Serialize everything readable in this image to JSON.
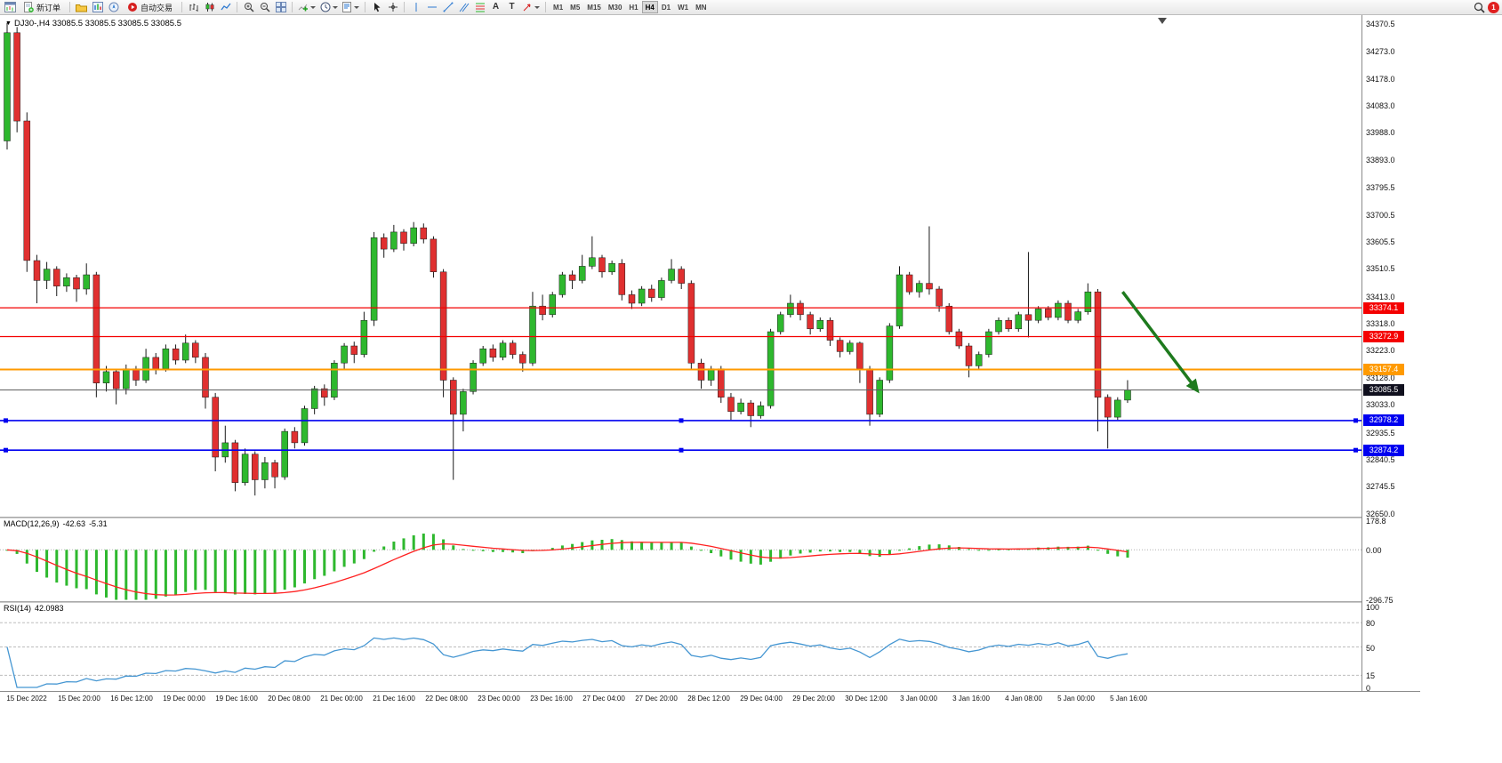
{
  "toolbar": {
    "new_order": "新订单",
    "autotrading": "自动交易",
    "text_tool": "A",
    "label_tool": "T",
    "timeframes": [
      "M1",
      "M5",
      "M15",
      "M30",
      "H1",
      "H4",
      "D1",
      "W1",
      "MN"
    ],
    "active_timeframe": "H4",
    "notification_count": "1"
  },
  "chart": {
    "info_label": "DJ30-,H4 33085.5 33085.5 33085.5 33085.5"
  },
  "chart_data": {
    "type": "candlestick",
    "symbol": "DJ30-",
    "period": "H4",
    "ylim": [
      32650.0,
      34370.5
    ],
    "price_ticks": [
      "34370.5",
      "34273.0",
      "34178.0",
      "34083.0",
      "33988.0",
      "33893.0",
      "33795.5",
      "33700.5",
      "33605.5",
      "33510.5",
      "33413.0",
      "33318.0",
      "33223.0",
      "33128.0",
      "33033.0",
      "32935.5",
      "32840.5",
      "32745.5",
      "32650.0"
    ],
    "time_labels": [
      "15 Dec 2022",
      "15 Dec 20:00",
      "16 Dec 12:00",
      "19 Dec 00:00",
      "19 Dec 16:00",
      "20 Dec 08:00",
      "21 Dec 00:00",
      "21 Dec 16:00",
      "22 Dec 08:00",
      "23 Dec 00:00",
      "23 Dec 16:00",
      "27 Dec 04:00",
      "27 Dec 20:00",
      "28 Dec 12:00",
      "29 Dec 04:00",
      "29 Dec 20:00",
      "30 Dec 12:00",
      "3 Jan 00:00",
      "3 Jan 16:00",
      "4 Jan 08:00",
      "5 Jan 00:00",
      "5 Jan 16:00"
    ],
    "ohlc": [
      [
        33960,
        34375,
        33930,
        34340
      ],
      [
        34340,
        34360,
        33990,
        34030
      ],
      [
        34030,
        34060,
        33500,
        33540
      ],
      [
        33540,
        33560,
        33390,
        33470
      ],
      [
        33470,
        33535,
        33440,
        33510
      ],
      [
        33510,
        33520,
        33415,
        33450
      ],
      [
        33450,
        33495,
        33430,
        33480
      ],
      [
        33480,
        33490,
        33395,
        33440
      ],
      [
        33440,
        33530,
        33420,
        33490
      ],
      [
        33490,
        33500,
        33060,
        33110
      ],
      [
        33110,
        33170,
        33080,
        33150
      ],
      [
        33150,
        33160,
        33035,
        33090
      ],
      [
        33090,
        33175,
        33070,
        33160
      ],
      [
        33160,
        33170,
        33100,
        33120
      ],
      [
        33120,
        33230,
        33110,
        33200
      ],
      [
        33200,
        33215,
        33140,
        33160
      ],
      [
        33160,
        33245,
        33150,
        33230
      ],
      [
        33230,
        33245,
        33175,
        33190
      ],
      [
        33190,
        33280,
        33180,
        33250
      ],
      [
        33250,
        33260,
        33180,
        33200
      ],
      [
        33200,
        33215,
        33020,
        33060
      ],
      [
        33060,
        33075,
        32800,
        32850
      ],
      [
        32850,
        32960,
        32830,
        32900
      ],
      [
        32900,
        32910,
        32730,
        32760
      ],
      [
        32760,
        32880,
        32750,
        32860
      ],
      [
        32860,
        32870,
        32715,
        32770
      ],
      [
        32770,
        32850,
        32740,
        32830
      ],
      [
        32830,
        32840,
        32740,
        32780
      ],
      [
        32780,
        32950,
        32770,
        32940
      ],
      [
        32940,
        32955,
        32880,
        32900
      ],
      [
        32900,
        33030,
        32890,
        33020
      ],
      [
        33020,
        33100,
        33000,
        33090
      ],
      [
        33090,
        33105,
        33030,
        33060
      ],
      [
        33060,
        33190,
        33050,
        33180
      ],
      [
        33180,
        33250,
        33160,
        33240
      ],
      [
        33240,
        33255,
        33180,
        33210
      ],
      [
        33210,
        33360,
        33200,
        33330
      ],
      [
        33330,
        33640,
        33310,
        33620
      ],
      [
        33620,
        33635,
        33550,
        33580
      ],
      [
        33580,
        33665,
        33570,
        33640
      ],
      [
        33640,
        33650,
        33575,
        33600
      ],
      [
        33600,
        33675,
        33590,
        33655
      ],
      [
        33655,
        33670,
        33600,
        33615
      ],
      [
        33615,
        33625,
        33480,
        33500
      ],
      [
        33500,
        33510,
        33060,
        33120
      ],
      [
        33120,
        33130,
        32770,
        33000
      ],
      [
        33000,
        33090,
        32940,
        33080
      ],
      [
        33080,
        33190,
        33070,
        33180
      ],
      [
        33180,
        33240,
        33170,
        33230
      ],
      [
        33230,
        33245,
        33185,
        33200
      ],
      [
        33200,
        33260,
        33190,
        33250
      ],
      [
        33250,
        33260,
        33195,
        33210
      ],
      [
        33210,
        33220,
        33150,
        33180
      ],
      [
        33180,
        33430,
        33170,
        33380
      ],
      [
        33380,
        33420,
        33330,
        33350
      ],
      [
        33350,
        33430,
        33340,
        33420
      ],
      [
        33420,
        33500,
        33410,
        33490
      ],
      [
        33490,
        33505,
        33440,
        33470
      ],
      [
        33470,
        33560,
        33460,
        33520
      ],
      [
        33520,
        33625,
        33510,
        33550
      ],
      [
        33550,
        33560,
        33480,
        33500
      ],
      [
        33500,
        33540,
        33490,
        33530
      ],
      [
        33530,
        33545,
        33400,
        33420
      ],
      [
        33420,
        33435,
        33370,
        33390
      ],
      [
        33390,
        33450,
        33380,
        33440
      ],
      [
        33440,
        33455,
        33395,
        33410
      ],
      [
        33410,
        33480,
        33400,
        33470
      ],
      [
        33470,
        33545,
        33460,
        33510
      ],
      [
        33510,
        33520,
        33440,
        33460
      ],
      [
        33460,
        33470,
        33160,
        33180
      ],
      [
        33180,
        33195,
        33090,
        33120
      ],
      [
        33120,
        33170,
        33100,
        33160
      ],
      [
        33160,
        33170,
        33040,
        33060
      ],
      [
        33060,
        33075,
        32980,
        33010
      ],
      [
        33010,
        33055,
        33000,
        33040
      ],
      [
        33040,
        33050,
        32955,
        32995
      ],
      [
        32995,
        33045,
        32985,
        33030
      ],
      [
        33030,
        33300,
        33020,
        33290
      ],
      [
        33290,
        33360,
        33280,
        33350
      ],
      [
        33350,
        33420,
        33340,
        33390
      ],
      [
        33390,
        33400,
        33330,
        33350
      ],
      [
        33350,
        33360,
        33280,
        33300
      ],
      [
        33300,
        33340,
        33290,
        33330
      ],
      [
        33330,
        33340,
        33240,
        33260
      ],
      [
        33260,
        33270,
        33200,
        33220
      ],
      [
        33220,
        33260,
        33210,
        33250
      ],
      [
        33250,
        33255,
        33110,
        33160
      ],
      [
        33160,
        33170,
        32960,
        33000
      ],
      [
        33000,
        33130,
        32990,
        33120
      ],
      [
        33120,
        33320,
        33110,
        33310
      ],
      [
        33310,
        33520,
        33300,
        33490
      ],
      [
        33490,
        33500,
        33420,
        33430
      ],
      [
        33430,
        33470,
        33410,
        33460
      ],
      [
        33460,
        33660,
        33420,
        33440
      ],
      [
        33440,
        33450,
        33360,
        33380
      ],
      [
        33380,
        33390,
        33280,
        33290
      ],
      [
        33290,
        33300,
        33230,
        33240
      ],
      [
        33240,
        33250,
        33130,
        33170
      ],
      [
        33170,
        33220,
        33160,
        33210
      ],
      [
        33210,
        33300,
        33200,
        33290
      ],
      [
        33290,
        33340,
        33280,
        33330
      ],
      [
        33330,
        33340,
        33290,
        33300
      ],
      [
        33300,
        33360,
        33290,
        33350
      ],
      [
        33350,
        33570,
        33270,
        33330
      ],
      [
        33330,
        33380,
        33320,
        33370
      ],
      [
        33370,
        33380,
        33330,
        33340
      ],
      [
        33340,
        33400,
        33330,
        33390
      ],
      [
        33390,
        33400,
        33320,
        33330
      ],
      [
        33330,
        33370,
        33320,
        33360
      ],
      [
        33360,
        33460,
        33350,
        33430
      ],
      [
        33430,
        33440,
        32940,
        33060
      ],
      [
        33060,
        33070,
        32880,
        32990
      ],
      [
        32990,
        33060,
        32980,
        33050
      ],
      [
        33050,
        33120,
        33040,
        33085.5
      ]
    ],
    "levels": [
      {
        "label": "33374.1",
        "value": 33374.1,
        "line_color": "#f40000",
        "badge_color": "#f40000",
        "width": 1.2,
        "handles": false
      },
      {
        "label": "33272.9",
        "value": 33272.9,
        "line_color": "#f40000",
        "badge_color": "#f40000",
        "width": 1.2,
        "handles": false
      },
      {
        "label": "33157.4",
        "value": 33157.4,
        "line_color": "#ff9a00",
        "badge_color": "#ff9a00",
        "width": 2,
        "handles": false
      },
      {
        "label": "33085.5",
        "value": 33085.5,
        "line_color": "#5f5f5f",
        "badge_color": "#10101e",
        "width": 1,
        "handles": false
      },
      {
        "label": "32978.2",
        "value": 32978.2,
        "line_color": "#0000f0",
        "badge_color": "#0000f0",
        "width": 1.6,
        "handles": true
      },
      {
        "label": "32874.2",
        "value": 32874.2,
        "line_color": "#0000f0",
        "badge_color": "#0000f0",
        "width": 1.6,
        "handles": true
      }
    ],
    "indicators": {
      "macd": {
        "label": "MACD(12,26,9)",
        "value_main": "-42.63",
        "value_signal": "-5.31",
        "axis_ticks": [
          "178.8",
          "0.00",
          "-296.75"
        ],
        "params": [
          12,
          26,
          9
        ],
        "range": [
          -296.75,
          178.8
        ]
      },
      "rsi": {
        "label": "RSI(14)",
        "value": "42.0983",
        "axis_ticks": [
          "100",
          "80",
          "50",
          "15",
          "0"
        ],
        "levels": [
          80,
          50,
          15
        ],
        "period": 14,
        "range": [
          0,
          100
        ]
      }
    },
    "annotation_arrow": {
      "from": [
        112.5,
        33430
      ],
      "to": [
        120,
        33085
      ]
    },
    "colors": {
      "bull": "#2eb82e",
      "bear": "#e03030",
      "macd_hist": "#2eb82e",
      "macd_signal": "#ff2020",
      "rsi_line": "#4596d2",
      "arrow": "#1e7a1e"
    }
  }
}
